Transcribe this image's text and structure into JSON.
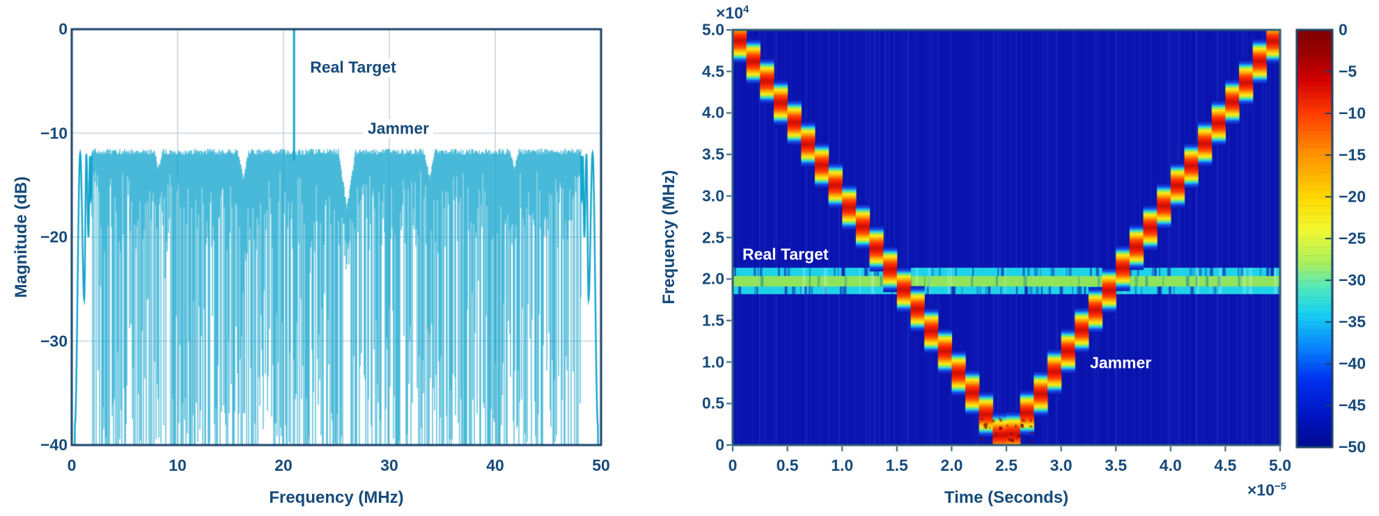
{
  "figure": {
    "background": "#ffffff",
    "text_color": "#174a7a",
    "left_border_color": "#1a4066",
    "right_border_color": "#2b5a74",
    "grid_color": "#c9d4dd",
    "spectrum_line_color": "#14a5cd",
    "spectrogram_background": "#0a13ad",
    "target_band_cyan": "#1fd2e8",
    "target_band_green": "#90e45c"
  },
  "chart_data": [
    {
      "type": "line",
      "title": "",
      "xlabel": "Frequency (MHz)",
      "ylabel": "Magnitude (dB)",
      "xlim": [
        0,
        50
      ],
      "ylim": [
        -40,
        0
      ],
      "xticks": [
        0,
        10,
        20,
        30,
        40,
        50
      ],
      "xtick_labels": [
        "0",
        "10",
        "20",
        "30",
        "40",
        "50"
      ],
      "yticks": [
        0,
        -10,
        -20,
        -30,
        -40
      ],
      "ytick_labels": [
        "0",
        "−10",
        "−20",
        "−30",
        "−40"
      ],
      "grid": true,
      "legend": "none",
      "series": [
        {
          "name": "real_target_tone",
          "kind": "spike",
          "x_MHz": 21,
          "peak_dB": 0
        },
        {
          "name": "jammer_noise_floor",
          "kind": "dense_noise_band",
          "x_range_MHz": [
            0.3,
            49.7
          ],
          "floor_dB": -11.5,
          "spikes_down_to_dB": -40,
          "envelope_null_MHz": [
            8.2,
            16.2,
            26.0,
            33.8,
            41.8
          ],
          "edge_sidelobes": "sinc-like lobes at both band edges"
        }
      ],
      "annotations": [
        {
          "text": "Real Target",
          "x_MHz": 26.6,
          "y_dB": -3.7,
          "color": "#174a7a"
        },
        {
          "text": "Jammer",
          "x_MHz": 30.9,
          "y_dB": -9.6,
          "color": "#174a7a"
        }
      ]
    },
    {
      "type": "heatmap",
      "title": "",
      "xlabel": "Time (Seconds)",
      "ylabel": "Frequency (MHz)",
      "multiplier_base": "×10",
      "x_exponent": "−5",
      "y_exponent": "4",
      "xlim_s": [
        0,
        5e-05
      ],
      "ylim_MHz": [
        0,
        50000
      ],
      "xtick_labels": [
        "0",
        "0.5",
        "1.0",
        "1.5",
        "2.0",
        "2.5",
        "3.0",
        "3.5",
        "4.0",
        "4.5",
        "5.0"
      ],
      "ytick_labels_bottom_to_top": [
        "0",
        "0.5",
        "1.0",
        "1.5",
        "2.0",
        "2.5",
        "3.0",
        "3.5",
        "4.0",
        "4.5",
        "5.0"
      ],
      "colormap": "jet",
      "background_level_dB": -50,
      "jammer_chirp": {
        "shape": "V",
        "vertices_t_s": [
          0,
          2.5e-05,
          5e-05
        ],
        "vertices_f_MHz": [
          50000,
          0,
          50000
        ],
        "peak_level_dB": 0
      },
      "target_tone": {
        "f_MHz": 20000,
        "extent": "constant across full time axis",
        "band_level_dB": "≈ −25 (green core) / ≈ −32 (cyan edges)"
      },
      "colorbar": {
        "min": -50,
        "max": 0,
        "tick_labels": [
          "0",
          "−5",
          "−10",
          "−15",
          "−20",
          "−25",
          "−30",
          "−35",
          "−40",
          "−45",
          "−50"
        ]
      },
      "annotations": [
        {
          "text": "Real Target",
          "t_s": 9e-07,
          "f_MHz": 22900,
          "color": "#ffffff"
        },
        {
          "text": "Jammer",
          "t_s": 3.26e-05,
          "f_MHz": 9900,
          "color": "#ffffff"
        }
      ]
    }
  ]
}
